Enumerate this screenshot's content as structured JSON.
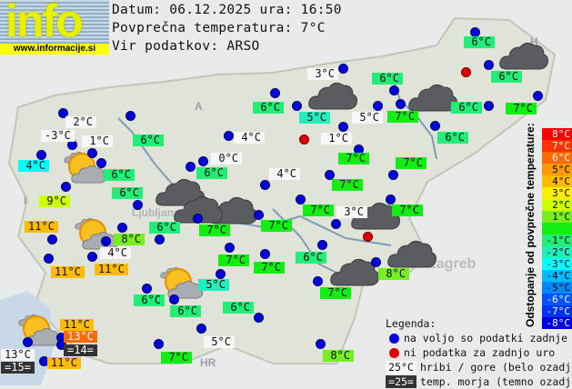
{
  "logo": {
    "text": "info",
    "url": "www.informacije.si"
  },
  "header": {
    "date_line": "Datum: 06.12.2025 ura: 16:50",
    "avg_line": "Povprečna temperatura: 7°C",
    "source_line": "Vir podatkov: ARSO"
  },
  "average_temp": 7,
  "map_labels": {
    "austria": "A",
    "italy": "I",
    "croatia": "HR",
    "hungary": "H",
    "zagreb": "Zagreb",
    "ljubljana": "Ljubljana"
  },
  "colors": {
    "mountain": "#f7f7f7",
    "sea": "#333333",
    "sea_text": "#ffffff",
    "station_ok": "#0000dd",
    "station_missing": "#dd0000"
  },
  "scale": {
    "title": "Odstopanje od povprečne temperature:",
    "rows": [
      {
        "label": "8°C",
        "dev": 8,
        "color": "#ff0000",
        "text": "#ffffff"
      },
      {
        "label": "7°C",
        "dev": 7,
        "color": "#ff3300",
        "text": "#ffffff"
      },
      {
        "label": "6°C",
        "dev": 6,
        "color": "#ff6a00",
        "text": "#ffffff"
      },
      {
        "label": "5°C",
        "dev": 5,
        "color": "#ff9900",
        "text": "#000000"
      },
      {
        "label": "4°C",
        "dev": 4,
        "color": "#ffbb00",
        "text": "#000000"
      },
      {
        "label": "3°C",
        "dev": 3,
        "color": "#ffee00",
        "text": "#000000"
      },
      {
        "label": "2°C",
        "dev": 2,
        "color": "#ccff00",
        "text": "#000000"
      },
      {
        "label": "1°C",
        "dev": 1,
        "color": "#77ee22",
        "text": "#000000"
      },
      {
        "label": "",
        "dev": 0,
        "color": "#11ee11",
        "text": "#000000"
      },
      {
        "label": "-1°C",
        "dev": -1,
        "color": "#22ee77",
        "text": "#000000"
      },
      {
        "label": "-2°C",
        "dev": -2,
        "color": "#22eebb",
        "text": "#000000"
      },
      {
        "label": "-3°C",
        "dev": -3,
        "color": "#00ffff",
        "text": "#000000"
      },
      {
        "label": "-4°C",
        "dev": -4,
        "color": "#00bbff",
        "text": "#000000"
      },
      {
        "label": "-5°C",
        "dev": -5,
        "color": "#0088ff",
        "text": "#000000"
      },
      {
        "label": "-6°C",
        "dev": -6,
        "color": "#0055ff",
        "text": "#ffffff"
      },
      {
        "label": "-7°C",
        "dev": -7,
        "color": "#0033ee",
        "text": "#ffffff"
      },
      {
        "label": "-8°C",
        "dev": -8,
        "color": "#0000dd",
        "text": "#ffffff"
      }
    ]
  },
  "legend": {
    "title": "Legenda:",
    "ok": "na voljo so podatki zadnje ure",
    "missing": "ni podatka za zadnjo uro",
    "mountain_sample": "25°C",
    "mountain": "hribi / gore (belo ozadje)",
    "sea_sample": "=25=",
    "sea": "temp. morja (temno ozadje)"
  },
  "stations": [
    {
      "temp": "2°C",
      "kind": "mountain"
    },
    {
      "temp": "-3°C",
      "kind": "mountain"
    },
    {
      "temp": "1°C",
      "kind": "mountain"
    },
    {
      "temp": "4°C",
      "kind": "valley"
    },
    {
      "temp": "6°C",
      "kind": "valley"
    },
    {
      "temp": "6°C",
      "kind": "valley"
    },
    {
      "temp": "4°C",
      "kind": "mountain"
    },
    {
      "temp": "0°C",
      "kind": "mountain"
    },
    {
      "temp": "6°C",
      "kind": "valley"
    },
    {
      "temp": "4°C",
      "kind": "mountain"
    },
    {
      "temp": "6°C",
      "kind": "valley"
    },
    {
      "temp": "6°C",
      "kind": "valley"
    },
    {
      "temp": "3°C",
      "kind": "mountain"
    },
    {
      "temp": "6°C",
      "kind": "valley"
    },
    {
      "temp": "6°C",
      "kind": "valley"
    },
    {
      "temp": "5°C",
      "kind": "valley"
    },
    {
      "temp": "5°C",
      "kind": "mountain"
    },
    {
      "temp": "7°C",
      "kind": "valley"
    },
    {
      "temp": "6°C",
      "kind": "valley"
    },
    {
      "temp": "7°C",
      "kind": "valley"
    },
    {
      "temp": "1°C",
      "kind": "mountain"
    },
    {
      "temp": "6°C",
      "kind": "valley"
    },
    {
      "temp": "7°C",
      "kind": "valley"
    },
    {
      "temp": "7°C",
      "kind": "valley"
    },
    {
      "temp": "7°C",
      "kind": "valley"
    },
    {
      "temp": "7°C",
      "kind": "valley"
    },
    {
      "temp": "3°C",
      "kind": "mountain"
    },
    {
      "temp": "7°C",
      "kind": "valley"
    },
    {
      "temp": "9°C",
      "kind": "valley"
    },
    {
      "temp": "11°C",
      "kind": "valley"
    },
    {
      "temp": "8°C",
      "kind": "valley"
    },
    {
      "temp": "6°C",
      "kind": "valley"
    },
    {
      "temp": "7°C",
      "kind": "valley"
    },
    {
      "temp": "7°C",
      "kind": "valley"
    },
    {
      "temp": "4°C",
      "kind": "mountain"
    },
    {
      "temp": "11°C",
      "kind": "valley"
    },
    {
      "temp": "11°C",
      "kind": "valley"
    },
    {
      "temp": "7°C",
      "kind": "valley"
    },
    {
      "temp": "7°C",
      "kind": "valley"
    },
    {
      "temp": "5°C",
      "kind": "valley"
    },
    {
      "temp": "6°C",
      "kind": "valley"
    },
    {
      "temp": "6°C",
      "kind": "valley"
    },
    {
      "temp": "6°C",
      "kind": "valley"
    },
    {
      "temp": "11°C",
      "kind": "valley"
    },
    {
      "temp": "13°C",
      "kind": "valley"
    },
    {
      "temp": "=14=",
      "kind": "sea"
    },
    {
      "temp": "13°C",
      "kind": "mountain"
    },
    {
      "temp": "=15=",
      "kind": "sea"
    },
    {
      "temp": "11°C",
      "kind": "valley"
    },
    {
      "temp": "7°C",
      "kind": "valley"
    },
    {
      "temp": "5°C",
      "kind": "mountain"
    },
    {
      "temp": "6°C",
      "kind": "valley"
    },
    {
      "temp": "8°C",
      "kind": "valley"
    },
    {
      "temp": "7°C",
      "kind": "valley"
    },
    {
      "temp": "8°C",
      "kind": "valley"
    },
    {
      "temp": "6°C",
      "kind": "valley"
    }
  ],
  "weather_icons": [
    "cloudy",
    "cloudy",
    "cloudy",
    "cloudy",
    "cloudy",
    "cloudy",
    "cloudy",
    "cloudy",
    "cloudy",
    "partly-cloudy",
    "partly-cloudy",
    "partly-cloudy",
    "partly-cloudy"
  ]
}
